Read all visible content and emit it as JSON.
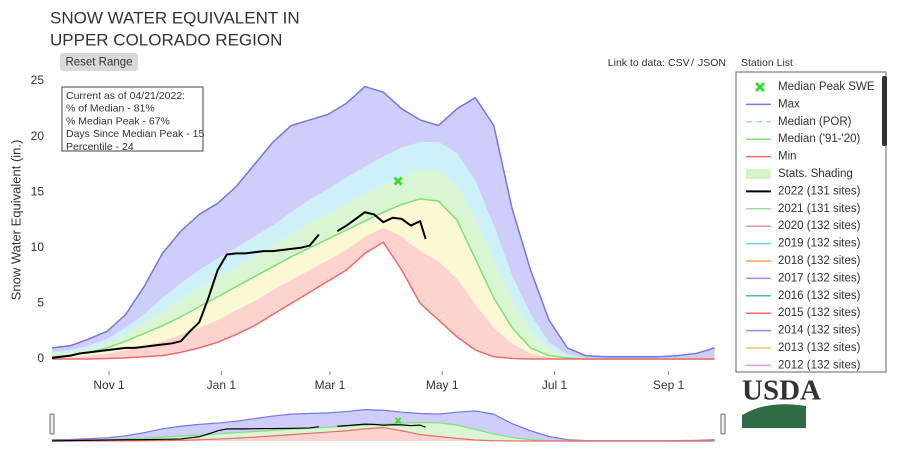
{
  "header": {
    "title": [
      "SNOW WATER EQUIVALENT IN",
      "UPPER COLORADO REGION"
    ]
  },
  "controls": {
    "reset": "Reset Range",
    "link_label": "Link to data:",
    "csv": "CSV",
    "separator": "/",
    "json": "JSON",
    "station_list": "Station List"
  },
  "logo": "USDA",
  "chart_data": {
    "type": "line",
    "y_label": "Snow Water Equivalent (in.)",
    "annotation": [
      "Current as of 04/21/2022:",
      "% of Median - 81%",
      "% Median Peak - 67%",
      "Days Since Median Peak - 15",
      "Percentile - 24"
    ],
    "xlim": [
      0,
      364
    ],
    "xticks": [
      {
        "value": 31,
        "label": "Nov 1"
      },
      {
        "value": 92,
        "label": "Jan 1"
      },
      {
        "value": 151,
        "label": "Mar 1"
      },
      {
        "value": 212,
        "label": "May 1"
      },
      {
        "value": 273,
        "label": "Jul 1"
      },
      {
        "value": 335,
        "label": "Sep 1"
      }
    ],
    "ylim": [
      0,
      25
    ],
    "yticks": [
      0,
      5,
      10,
      15,
      20,
      25
    ],
    "grid": false,
    "x": [
      0,
      10,
      20,
      30,
      40,
      50,
      60,
      70,
      80,
      90,
      100,
      110,
      120,
      130,
      140,
      150,
      160,
      170,
      180,
      190,
      200,
      210,
      220,
      230,
      240,
      250,
      260,
      270,
      280,
      290,
      300,
      310,
      320,
      330,
      340,
      350,
      360
    ],
    "series": [
      {
        "name": "Max",
        "color": "#7676e6",
        "fill": "#cfcdfa",
        "width": 1.5,
        "values": [
          1.0,
          1.2,
          1.8,
          2.5,
          4.0,
          6.5,
          9.5,
          11.5,
          13.0,
          14.0,
          15.5,
          17.5,
          19.5,
          21.0,
          21.5,
          22.0,
          23.0,
          24.5,
          24.0,
          22.5,
          21.5,
          21.0,
          22.5,
          23.5,
          21.0,
          13.5,
          8.0,
          3.5,
          1.0,
          0.3,
          0.2,
          0.2,
          0.2,
          0.2,
          0.3,
          0.5,
          1.0
        ]
      },
      {
        "name": "Median ('91-'20)",
        "color": "#7ee07e",
        "width": 1.5,
        "values": [
          0.2,
          0.3,
          0.6,
          1.0,
          1.6,
          2.3,
          3.0,
          3.8,
          4.7,
          5.6,
          6.5,
          7.4,
          8.3,
          9.2,
          10.0,
          10.8,
          11.6,
          12.4,
          13.2,
          13.9,
          14.4,
          14.2,
          12.5,
          9.0,
          5.5,
          2.8,
          1.0,
          0.3,
          0.1,
          0,
          0,
          0,
          0,
          0,
          0,
          0,
          0
        ]
      },
      {
        "name": "Min",
        "color": "#f06a6a",
        "width": 1.5,
        "values": [
          0,
          0,
          0,
          0.05,
          0.1,
          0.2,
          0.3,
          0.6,
          1.0,
          1.5,
          2.2,
          3.0,
          4.0,
          5.0,
          6.0,
          7.0,
          8.0,
          9.5,
          10.5,
          8.0,
          5.0,
          3.5,
          2.0,
          0.8,
          0.2,
          0.05,
          0,
          0,
          0,
          0,
          0,
          0,
          0,
          0,
          0,
          0,
          0
        ]
      },
      {
        "name": "2022 (131 sites)",
        "color": "#000000",
        "width": 2,
        "x": [
          0,
          5,
          10,
          15,
          20,
          25,
          30,
          35,
          40,
          45,
          50,
          55,
          60,
          65,
          70,
          75,
          80,
          85,
          90,
          95,
          100,
          105,
          110,
          115,
          120,
          125,
          130,
          135,
          140,
          145,
          150,
          155,
          160,
          165,
          170,
          175,
          180,
          185,
          190,
          195,
          200,
          203
        ],
        "values": [
          0.1,
          0.2,
          0.3,
          0.5,
          0.6,
          0.7,
          0.8,
          0.9,
          1.0,
          1.0,
          1.1,
          1.2,
          1.3,
          1.4,
          1.6,
          2.5,
          3.3,
          5.5,
          8.0,
          9.4,
          9.5,
          9.5,
          9.6,
          9.7,
          9.7,
          9.8,
          9.9,
          10.0,
          10.2,
          11.2,
          null,
          11.5,
          12.0,
          12.6,
          13.2,
          13.0,
          12.3,
          12.7,
          12.6,
          12.0,
          12.4,
          10.8
        ]
      }
    ],
    "shading": {
      "name": "Stats. Shading",
      "legend_color": "#d4f5cc",
      "colors": [
        "#cdf1f6",
        "#daf5d2",
        "#fbf9d4",
        "#fdd3cf"
      ],
      "bands": [
        [
          0.6,
          0.8,
          1.2,
          1.8,
          2.8,
          4.0,
          5.5,
          6.8,
          8.0,
          9.0,
          10.0,
          11.0,
          12.0,
          13.2,
          14.3,
          15.3,
          16.3,
          17.3,
          18.2,
          19.0,
          19.5,
          19.5,
          18.5,
          16.0,
          12.0,
          7.5,
          4.0,
          1.5,
          0.4,
          0.1,
          0,
          0,
          0,
          0,
          0,
          0,
          0
        ],
        [
          0.4,
          0.55,
          0.9,
          1.4,
          2.2,
          3.2,
          4.2,
          5.3,
          6.4,
          7.3,
          8.2,
          9.2,
          10.2,
          11.2,
          12.2,
          13.0,
          14.0,
          14.8,
          15.7,
          16.4,
          17.0,
          16.8,
          15.5,
          12.5,
          8.8,
          5.2,
          2.5,
          0.9,
          0.2,
          0.05,
          0,
          0,
          0,
          0,
          0,
          0,
          0
        ],
        [
          0.1,
          0.15,
          0.3,
          0.5,
          0.8,
          1.2,
          1.6,
          2.2,
          2.8,
          3.5,
          4.4,
          5.2,
          6.2,
          7.1,
          8.0,
          8.9,
          9.8,
          11.0,
          11.8,
          11.0,
          9.7,
          8.8,
          7.2,
          4.9,
          2.8,
          1.4,
          0.5,
          0.15,
          0.05,
          0,
          0,
          0,
          0,
          0,
          0,
          0,
          0
        ]
      ]
    },
    "peak": {
      "name": "Median Peak SWE",
      "color": "#33dd33",
      "x": 188,
      "value": 16
    },
    "legend_only": [
      {
        "name": "Median (POR)",
        "color": "#9be89b",
        "dash": true
      },
      {
        "name": "2021 (131 sites)",
        "color": "#98dc98"
      },
      {
        "name": "2020 (132 sites)",
        "color": "#f08cb0"
      },
      {
        "name": "2019 (132 sites)",
        "color": "#6fd5e8"
      },
      {
        "name": "2018 (132 sites)",
        "color": "#f5a05a"
      },
      {
        "name": "2017 (132 sites)",
        "color": "#b088e8"
      },
      {
        "name": "2016 (132 sites)",
        "color": "#50c0a0"
      },
      {
        "name": "2015 (132 sites)",
        "color": "#f07070"
      },
      {
        "name": "2014 (132 sites)",
        "color": "#8c8ce8"
      },
      {
        "name": "2013 (132 sites)",
        "color": "#f5c060"
      },
      {
        "name": "2012 (132 sites)",
        "color": "#e89ae8"
      }
    ]
  }
}
